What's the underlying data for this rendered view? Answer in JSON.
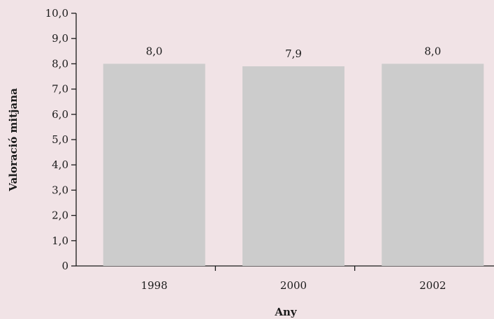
{
  "chart_data": {
    "type": "bar",
    "categories": [
      "1998",
      "2000",
      "2002"
    ],
    "values": [
      8.0,
      7.9,
      8.0
    ],
    "value_labels": [
      "8,0",
      "7,9",
      "8,0"
    ],
    "y_ticks": [
      0,
      1,
      2,
      3,
      4,
      5,
      6,
      7,
      8,
      9,
      10
    ],
    "y_tick_labels": [
      "0",
      "1,0",
      "2,0",
      "3,0",
      "4,0",
      "5,0",
      "6,0",
      "7,0",
      "8,0",
      "9,0",
      "10,0"
    ],
    "ylim": [
      0,
      10
    ],
    "xlabel": "Any",
    "ylabel": "Valoració mitjana",
    "grid": false,
    "legend": "none",
    "colors": {
      "background": "#f1e3e6",
      "bar": "#cccccc",
      "axis": "#1a1a1a",
      "text": "#1a1a1a"
    }
  }
}
